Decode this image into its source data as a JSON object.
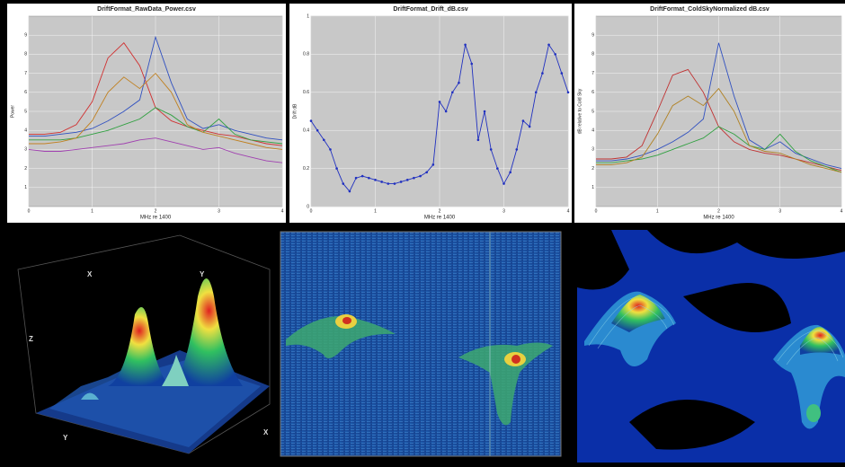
{
  "chart_data": [
    {
      "type": "line",
      "title": "DriftFormat_RawData_Power.csv",
      "x_label": "MHz re 1400",
      "y_label": "Power",
      "xlim": [
        0,
        4
      ],
      "ylim": [
        0,
        10
      ],
      "xticks": [
        0,
        1,
        2,
        3,
        4
      ],
      "yticks": [
        1,
        2,
        3,
        4,
        5,
        6,
        7,
        8,
        9
      ],
      "grid": true,
      "x": [
        0,
        0.25,
        0.5,
        0.75,
        1,
        1.25,
        1.5,
        1.75,
        2,
        2.25,
        2.5,
        2.75,
        3,
        3.25,
        3.5,
        3.75,
        4
      ],
      "series": [
        {
          "color": "#d03030",
          "values": [
            3.8,
            3.8,
            3.9,
            4.3,
            5.5,
            7.8,
            8.6,
            7.4,
            5.2,
            4.5,
            4.2,
            4.0,
            3.8,
            3.7,
            3.5,
            3.3,
            3.2
          ]
        },
        {
          "color": "#3050c0",
          "values": [
            3.7,
            3.7,
            3.8,
            3.9,
            4.1,
            4.5,
            5.0,
            5.6,
            8.9,
            6.5,
            4.6,
            4.1,
            4.3,
            4.0,
            3.8,
            3.6,
            3.5
          ]
        },
        {
          "color": "#30a040",
          "values": [
            3.5,
            3.5,
            3.5,
            3.6,
            3.8,
            4.0,
            4.3,
            4.6,
            5.2,
            4.8,
            4.2,
            3.9,
            4.6,
            3.8,
            3.5,
            3.4,
            3.3
          ]
        },
        {
          "color": "#a040b0",
          "values": [
            3.0,
            2.9,
            2.9,
            3.0,
            3.1,
            3.2,
            3.3,
            3.5,
            3.6,
            3.4,
            3.2,
            3.0,
            3.1,
            2.8,
            2.6,
            2.4,
            2.3
          ]
        },
        {
          "color": "#c08020",
          "values": [
            3.3,
            3.3,
            3.4,
            3.6,
            4.5,
            6.0,
            6.8,
            6.2,
            7.0,
            6.0,
            4.3,
            3.9,
            3.7,
            3.5,
            3.3,
            3.1,
            3.0
          ]
        }
      ]
    },
    {
      "type": "line",
      "title": "DriftFormat_Drift_dB.csv",
      "x_label": "MHz re 1400",
      "y_label": "Drift dB",
      "xlim": [
        0,
        4
      ],
      "ylim": [
        0,
        1
      ],
      "xticks": [
        0,
        1,
        2,
        3,
        4
      ],
      "yticks": [
        0,
        0.2,
        0.4,
        0.6,
        0.8,
        1
      ],
      "grid": true,
      "markers": true,
      "x": [
        0,
        0.1,
        0.2,
        0.3,
        0.4,
        0.5,
        0.6,
        0.7,
        0.8,
        0.9,
        1,
        1.1,
        1.2,
        1.3,
        1.4,
        1.5,
        1.6,
        1.7,
        1.8,
        1.9,
        2,
        2.1,
        2.2,
        2.3,
        2.4,
        2.5,
        2.6,
        2.7,
        2.8,
        2.9,
        3,
        3.1,
        3.2,
        3.3,
        3.4,
        3.5,
        3.6,
        3.7,
        3.8,
        3.9,
        4
      ],
      "series": [
        {
          "color": "#2030c0",
          "values": [
            0.45,
            0.4,
            0.35,
            0.3,
            0.2,
            0.12,
            0.08,
            0.15,
            0.16,
            0.15,
            0.14,
            0.13,
            0.12,
            0.12,
            0.13,
            0.14,
            0.15,
            0.16,
            0.18,
            0.22,
            0.55,
            0.5,
            0.6,
            0.65,
            0.85,
            0.75,
            0.35,
            0.5,
            0.3,
            0.2,
            0.12,
            0.18,
            0.3,
            0.45,
            0.42,
            0.6,
            0.7,
            0.85,
            0.8,
            0.7,
            0.6
          ]
        }
      ]
    },
    {
      "type": "line",
      "title": "DriftFormat_ColdSkyNormalized dB.csv",
      "x_label": "MHz re 1400",
      "y_label": "dB relative to Cold Sky",
      "xlim": [
        0,
        4
      ],
      "ylim": [
        0,
        10
      ],
      "xticks": [
        0,
        1,
        2,
        3,
        4
      ],
      "yticks": [
        1,
        2,
        3,
        4,
        5,
        6,
        7,
        8,
        9
      ],
      "grid": true,
      "x": [
        0,
        0.25,
        0.5,
        0.75,
        1,
        1.25,
        1.5,
        1.75,
        2,
        2.25,
        2.5,
        2.75,
        3,
        3.25,
        3.5,
        3.75,
        4
      ],
      "series": [
        {
          "color": "#c03030",
          "values": [
            2.5,
            2.5,
            2.6,
            3.2,
            5.0,
            6.9,
            7.2,
            6.0,
            4.2,
            3.4,
            3.0,
            2.8,
            2.7,
            2.5,
            2.3,
            2.1,
            1.9
          ]
        },
        {
          "color": "#3050c0",
          "values": [
            2.4,
            2.4,
            2.5,
            2.7,
            3.0,
            3.4,
            3.9,
            4.6,
            8.6,
            5.8,
            3.5,
            3.0,
            3.4,
            2.8,
            2.5,
            2.2,
            2.0
          ]
        },
        {
          "color": "#30a040",
          "values": [
            2.3,
            2.3,
            2.4,
            2.5,
            2.7,
            3.0,
            3.3,
            3.6,
            4.2,
            3.8,
            3.2,
            3.0,
            3.8,
            2.9,
            2.4,
            2.1,
            1.8
          ]
        },
        {
          "color": "#b08020",
          "values": [
            2.2,
            2.2,
            2.3,
            2.6,
            3.8,
            5.3,
            5.8,
            5.3,
            6.2,
            5.0,
            3.2,
            2.9,
            2.8,
            2.5,
            2.2,
            2.0,
            1.8
          ]
        }
      ]
    }
  ],
  "views_3d": {
    "axis_labels": [
      "X",
      "Y",
      "Z",
      "X",
      "Y"
    ]
  }
}
